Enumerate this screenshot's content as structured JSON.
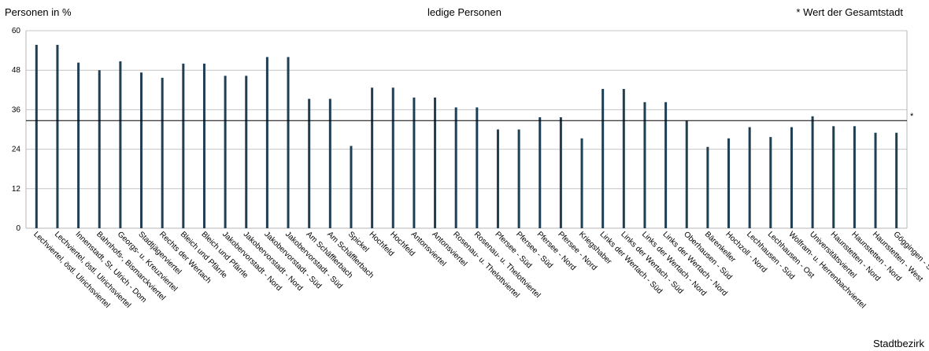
{
  "chart_data": {
    "type": "bar",
    "title": "ledige Personen",
    "ylabel": "Personen in %",
    "xlabel": "Stadtbezirk",
    "note": "* Wert der Gesamtstadt",
    "reference": {
      "value": 32.7,
      "marker": "*"
    },
    "ylim": [
      0,
      60
    ],
    "yticks": [
      0,
      12,
      24,
      36,
      48,
      60
    ],
    "grid": true,
    "bar_color": "#1f3f55",
    "categories": [
      "Lechviertel, östl. Ulrichsviertel",
      "Lechviertel, östl. Ulrichsviertel",
      "Innenstadt, St. Ulrich - Dom",
      "Bahnhofs-, Bismarckviertel",
      "Georgs- u. Kreuzviertel",
      "Stadtjägerviertel",
      "Rechts der Wertach",
      "Bleich und Pfärrle",
      "Bleich und Pfärrle",
      "Jakobervorstadt - Nord",
      "Jakobervorstadt - Nord",
      "Jakobervorstadt - Süd",
      "Jakobervorstadt - Süd",
      "Am Schäfflerbach",
      "Am Schäfflerbach",
      "Spickel",
      "Hochfeld",
      "Hochfeld",
      "Antonsviertel",
      "Antonsviertel",
      "Rosenau- u. Thelottviertel",
      "Rosenau- u. Thelottviertel",
      "Pfersee - Süd",
      "Pfersee - Süd",
      "Pfersee - Nord",
      "Pfersee - Nord",
      "Kriegshaber",
      "Links der Wertach - Süd",
      "Links der Wertach - Süd",
      "Links der Wertach - Nord",
      "Links der Wertach - Nord",
      "Oberhausen - Süd",
      "Bärenkeller",
      "Hochzoll - Nord",
      "Lechhausen - Süd",
      "Lechhausen - Ost",
      "Wolfram- u. Herrenbachviertel",
      "Universitätsviertel",
      "Haunstetten - Nord",
      "Haunstetten - Nord",
      "Haunstetten - West",
      "Göggingen - Süd"
    ],
    "values": [
      55.7,
      55.7,
      50.3,
      48.0,
      50.7,
      47.3,
      45.7,
      50.0,
      50.0,
      46.3,
      46.3,
      52.0,
      52.0,
      39.3,
      39.3,
      25.0,
      42.7,
      42.7,
      39.7,
      39.7,
      36.7,
      36.7,
      30.0,
      30.0,
      33.7,
      33.7,
      27.3,
      42.3,
      42.3,
      38.3,
      38.3,
      32.7,
      24.7,
      27.3,
      30.7,
      27.7,
      30.7,
      34.0,
      31.0,
      31.0,
      29.0,
      29.0
    ]
  }
}
